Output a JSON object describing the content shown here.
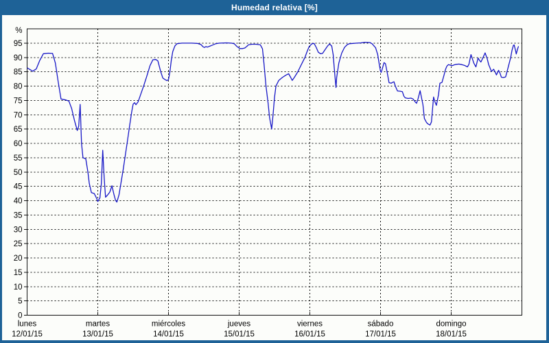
{
  "window": {
    "title": "Humedad relativa [%]"
  },
  "colors": {
    "titlebar": "#1e6297",
    "window_border": "#1e6297",
    "panel_bg": "#fcfdfa",
    "grid": "#111111",
    "line": "#1616c6",
    "title_text": "#ffffff"
  },
  "chart_data": {
    "type": "line",
    "title": "Humedad relativa [%]",
    "xlabel": "",
    "ylabel": "%",
    "ylim": [
      0,
      100
    ],
    "grid": "dashed",
    "legend_position": "none",
    "y_ticks": [
      0,
      5,
      10,
      15,
      20,
      25,
      30,
      35,
      40,
      45,
      50,
      55,
      60,
      65,
      70,
      75,
      80,
      85,
      90,
      95
    ],
    "x_axis": {
      "span_days": 7,
      "days": [
        {
          "name": "lunes",
          "date": "12/01/15"
        },
        {
          "name": "martes",
          "date": "13/01/15"
        },
        {
          "name": "miércoles",
          "date": "14/01/15"
        },
        {
          "name": "jueves",
          "date": "15/01/15"
        },
        {
          "name": "viernes",
          "date": "16/01/15"
        },
        {
          "name": "sábado",
          "date": "17/01/15"
        },
        {
          "name": "domingo",
          "date": "18/01/15"
        }
      ]
    },
    "series": [
      {
        "name": "Humedad relativa",
        "unit": "%",
        "color": "#1616c6",
        "points": [
          [
            0.005,
            86.3
          ],
          [
            0.04,
            85.8
          ],
          [
            0.08,
            85.2
          ],
          [
            0.13,
            86.0
          ],
          [
            0.18,
            89.0
          ],
          [
            0.23,
            91.3
          ],
          [
            0.3,
            91.5
          ],
          [
            0.36,
            91.4
          ],
          [
            0.4,
            88.0
          ],
          [
            0.44,
            81.5
          ],
          [
            0.48,
            75.5
          ],
          [
            0.54,
            75.2
          ],
          [
            0.59,
            74.8
          ],
          [
            0.63,
            72.2
          ],
          [
            0.67,
            68.0
          ],
          [
            0.71,
            64.5
          ],
          [
            0.73,
            66.0
          ],
          [
            0.75,
            73.6
          ],
          [
            0.77,
            60.0
          ],
          [
            0.79,
            55.0
          ],
          [
            0.83,
            54.6
          ],
          [
            0.86,
            50.0
          ],
          [
            0.88,
            46.0
          ],
          [
            0.91,
            42.8
          ],
          [
            0.95,
            42.5
          ],
          [
            0.98,
            41.0
          ],
          [
            1.0,
            39.7
          ],
          [
            1.03,
            41.0
          ],
          [
            1.05,
            46.0
          ],
          [
            1.07,
            57.6
          ],
          [
            1.09,
            48.0
          ],
          [
            1.11,
            41.2
          ],
          [
            1.14,
            42.0
          ],
          [
            1.17,
            43.0
          ],
          [
            1.2,
            45.2
          ],
          [
            1.23,
            42.0
          ],
          [
            1.25,
            40.2
          ],
          [
            1.27,
            39.5
          ],
          [
            1.3,
            42.0
          ],
          [
            1.33,
            46.5
          ],
          [
            1.36,
            51.0
          ],
          [
            1.39,
            56.0
          ],
          [
            1.42,
            61.0
          ],
          [
            1.45,
            66.0
          ],
          [
            1.48,
            71.0
          ],
          [
            1.5,
            73.7
          ],
          [
            1.52,
            74.2
          ],
          [
            1.54,
            73.5
          ],
          [
            1.57,
            74.5
          ],
          [
            1.6,
            76.6
          ],
          [
            1.65,
            80.1
          ],
          [
            1.69,
            83.2
          ],
          [
            1.74,
            87.2
          ],
          [
            1.78,
            89.2
          ],
          [
            1.82,
            89.3
          ],
          [
            1.85,
            88.8
          ],
          [
            1.89,
            85.0
          ],
          [
            1.92,
            82.8
          ],
          [
            1.95,
            82.3
          ],
          [
            1.98,
            81.9
          ],
          [
            2.0,
            82.3
          ],
          [
            2.02,
            85.0
          ],
          [
            2.04,
            89.0
          ],
          [
            2.06,
            92.0
          ],
          [
            2.09,
            94.0
          ],
          [
            2.12,
            94.8
          ],
          [
            2.19,
            95.0
          ],
          [
            2.25,
            95.0
          ],
          [
            2.33,
            95.0
          ],
          [
            2.41,
            94.9
          ],
          [
            2.46,
            94.5
          ],
          [
            2.49,
            93.7
          ],
          [
            2.51,
            93.5
          ],
          [
            2.53,
            93.8
          ],
          [
            2.55,
            93.6
          ],
          [
            2.58,
            93.9
          ],
          [
            2.62,
            94.3
          ],
          [
            2.67,
            94.8
          ],
          [
            2.72,
            95.0
          ],
          [
            2.82,
            95.1
          ],
          [
            2.89,
            95.0
          ],
          [
            2.93,
            94.8
          ],
          [
            2.97,
            93.8
          ],
          [
            3.01,
            93.1
          ],
          [
            3.05,
            93.1
          ],
          [
            3.08,
            93.3
          ],
          [
            3.11,
            93.9
          ],
          [
            3.13,
            94.4
          ],
          [
            3.18,
            94.6
          ],
          [
            3.24,
            94.6
          ],
          [
            3.3,
            94.4
          ],
          [
            3.33,
            93.0
          ],
          [
            3.35,
            88.0
          ],
          [
            3.38,
            80.0
          ],
          [
            3.41,
            74.0
          ],
          [
            3.43,
            69.0
          ],
          [
            3.46,
            65.0
          ],
          [
            3.48,
            70.0
          ],
          [
            3.5,
            76.0
          ],
          [
            3.52,
            80.0
          ],
          [
            3.56,
            82.0
          ],
          [
            3.61,
            83.0
          ],
          [
            3.66,
            83.8
          ],
          [
            3.7,
            84.3
          ],
          [
            3.73,
            83.0
          ],
          [
            3.75,
            82.0
          ],
          [
            3.78,
            83.0
          ],
          [
            3.83,
            85.0
          ],
          [
            3.88,
            87.5
          ],
          [
            3.93,
            90.0
          ],
          [
            3.96,
            92.0
          ],
          [
            3.99,
            93.8
          ],
          [
            4.03,
            94.8
          ],
          [
            4.06,
            94.9
          ],
          [
            4.09,
            93.5
          ],
          [
            4.12,
            91.8
          ],
          [
            4.15,
            91.3
          ],
          [
            4.18,
            91.4
          ],
          [
            4.21,
            92.5
          ],
          [
            4.25,
            94.0
          ],
          [
            4.28,
            94.7
          ],
          [
            4.31,
            94.0
          ],
          [
            4.33,
            91.0
          ],
          [
            4.35,
            85.0
          ],
          [
            4.37,
            79.5
          ],
          [
            4.38,
            83.0
          ],
          [
            4.41,
            88.0
          ],
          [
            4.45,
            91.5
          ],
          [
            4.49,
            93.5
          ],
          [
            4.53,
            94.5
          ],
          [
            4.56,
            94.8
          ],
          [
            4.61,
            94.9
          ],
          [
            4.66,
            95.0
          ],
          [
            4.72,
            95.1
          ],
          [
            4.78,
            95.3
          ],
          [
            4.85,
            95.2
          ],
          [
            4.88,
            94.8
          ],
          [
            4.93,
            93.4
          ],
          [
            4.96,
            91.0
          ],
          [
            4.98,
            88.0
          ],
          [
            5.0,
            85.1
          ],
          [
            5.01,
            84.8
          ],
          [
            5.03,
            86.5
          ],
          [
            5.05,
            88.2
          ],
          [
            5.07,
            87.8
          ],
          [
            5.1,
            84.0
          ],
          [
            5.12,
            81.2
          ],
          [
            5.15,
            81.0
          ],
          [
            5.17,
            81.3
          ],
          [
            5.19,
            81.5
          ],
          [
            5.21,
            80.0
          ],
          [
            5.24,
            78.3
          ],
          [
            5.28,
            78.2
          ],
          [
            5.31,
            78.0
          ],
          [
            5.33,
            76.5
          ],
          [
            5.35,
            75.9
          ],
          [
            5.39,
            75.7
          ],
          [
            5.43,
            75.8
          ],
          [
            5.46,
            75.5
          ],
          [
            5.49,
            74.5
          ],
          [
            5.51,
            74.0
          ],
          [
            5.53,
            75.5
          ],
          [
            5.56,
            78.4
          ],
          [
            5.58,
            76.0
          ],
          [
            5.6,
            73.5
          ],
          [
            5.62,
            68.7
          ],
          [
            5.65,
            67.3
          ],
          [
            5.67,
            66.8
          ],
          [
            5.7,
            66.4
          ],
          [
            5.72,
            67.5
          ],
          [
            5.75,
            76.2
          ],
          [
            5.77,
            74.5
          ],
          [
            5.79,
            73.3
          ],
          [
            5.82,
            77.0
          ],
          [
            5.84,
            81.0
          ],
          [
            5.87,
            81.3
          ],
          [
            5.9,
            84.0
          ],
          [
            5.92,
            85.9
          ],
          [
            5.94,
            87.0
          ],
          [
            5.96,
            87.5
          ],
          [
            5.99,
            87.3
          ],
          [
            6.01,
            87.1
          ],
          [
            6.04,
            87.4
          ],
          [
            6.07,
            87.6
          ],
          [
            6.11,
            87.7
          ],
          [
            6.15,
            87.5
          ],
          [
            6.19,
            87.2
          ],
          [
            6.23,
            86.7
          ],
          [
            6.25,
            87.6
          ],
          [
            6.28,
            91.0
          ],
          [
            6.3,
            89.5
          ],
          [
            6.32,
            88.0
          ],
          [
            6.35,
            86.7
          ],
          [
            6.38,
            89.8
          ],
          [
            6.4,
            89.0
          ],
          [
            6.42,
            88.4
          ],
          [
            6.45,
            90.0
          ],
          [
            6.48,
            91.6
          ],
          [
            6.51,
            89.5
          ],
          [
            6.53,
            87.5
          ],
          [
            6.57,
            85.1
          ],
          [
            6.6,
            85.9
          ],
          [
            6.62,
            85.0
          ],
          [
            6.64,
            83.9
          ],
          [
            6.67,
            85.5
          ],
          [
            6.69,
            84.5
          ],
          [
            6.71,
            83.1
          ],
          [
            6.74,
            83.0
          ],
          [
            6.77,
            83.2
          ],
          [
            6.8,
            86.0
          ],
          [
            6.84,
            89.8
          ],
          [
            6.86,
            92.5
          ],
          [
            6.88,
            94.2
          ],
          [
            6.89,
            94.4
          ],
          [
            6.91,
            92.5
          ],
          [
            6.92,
            91.2
          ],
          [
            6.94,
            93.0
          ],
          [
            6.95,
            93.8
          ]
        ]
      }
    ]
  }
}
